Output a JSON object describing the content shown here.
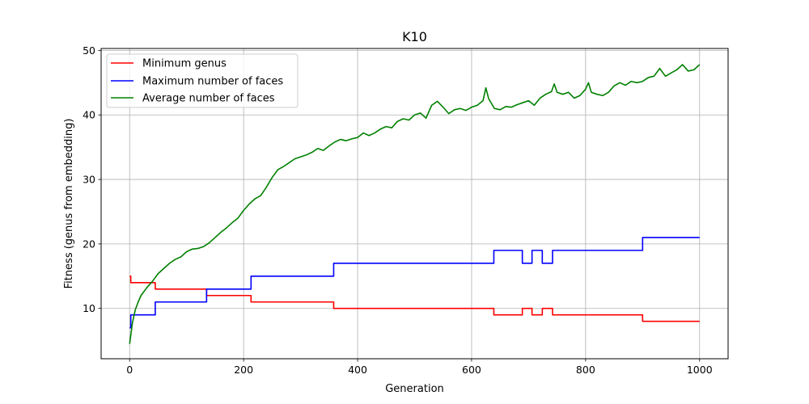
{
  "chart_data": {
    "type": "line",
    "title": "K10",
    "xlabel": "Generation",
    "ylabel": "Fitness (genus from embedding)",
    "xlim": [
      -50,
      1050
    ],
    "ylim": [
      2.2,
      50.3
    ],
    "xticks": [
      0,
      200,
      400,
      600,
      800,
      1000
    ],
    "yticks": [
      10,
      20,
      30,
      40,
      50
    ],
    "grid": true,
    "legend_position": "top-left",
    "series": [
      {
        "name": "Minimum genus",
        "color": "#ff0000",
        "step": true,
        "points": [
          [
            0,
            15
          ],
          [
            2,
            14
          ],
          [
            45,
            13
          ],
          [
            135,
            12
          ],
          [
            213,
            11
          ],
          [
            358,
            10
          ],
          [
            639,
            9
          ],
          [
            689,
            10
          ],
          [
            706,
            9
          ],
          [
            724,
            10
          ],
          [
            742,
            9
          ],
          [
            900,
            8
          ],
          [
            1000,
            8
          ]
        ]
      },
      {
        "name": "Maximum number of faces",
        "color": "#0000ff",
        "step": true,
        "points": [
          [
            0,
            7
          ],
          [
            2,
            9
          ],
          [
            45,
            11
          ],
          [
            135,
            13
          ],
          [
            213,
            15
          ],
          [
            358,
            17
          ],
          [
            639,
            19
          ],
          [
            689,
            17
          ],
          [
            706,
            19
          ],
          [
            724,
            17
          ],
          [
            742,
            19
          ],
          [
            900,
            21
          ],
          [
            1000,
            21
          ]
        ]
      },
      {
        "name": "Average number of faces",
        "color": "#008000",
        "step": false,
        "points": [
          [
            0,
            4.5
          ],
          [
            5,
            7.8
          ],
          [
            10,
            9.8
          ],
          [
            15,
            11
          ],
          [
            20,
            12
          ],
          [
            30,
            13.2
          ],
          [
            40,
            14.2
          ],
          [
            50,
            15.4
          ],
          [
            60,
            16.2
          ],
          [
            70,
            17
          ],
          [
            80,
            17.6
          ],
          [
            90,
            18
          ],
          [
            100,
            18.8
          ],
          [
            110,
            19.2
          ],
          [
            120,
            19.3
          ],
          [
            130,
            19.6
          ],
          [
            140,
            20.2
          ],
          [
            150,
            21
          ],
          [
            160,
            21.8
          ],
          [
            170,
            22.5
          ],
          [
            180,
            23.3
          ],
          [
            190,
            24
          ],
          [
            200,
            25.2
          ],
          [
            210,
            26.2
          ],
          [
            220,
            27
          ],
          [
            230,
            27.5
          ],
          [
            240,
            28.8
          ],
          [
            250,
            30.3
          ],
          [
            260,
            31.5
          ],
          [
            270,
            32
          ],
          [
            280,
            32.6
          ],
          [
            290,
            33.2
          ],
          [
            300,
            33.5
          ],
          [
            310,
            33.8
          ],
          [
            320,
            34.2
          ],
          [
            330,
            34.8
          ],
          [
            340,
            34.5
          ],
          [
            350,
            35.2
          ],
          [
            360,
            35.8
          ],
          [
            370,
            36.2
          ],
          [
            380,
            36
          ],
          [
            390,
            36.3
          ],
          [
            400,
            36.5
          ],
          [
            410,
            37.2
          ],
          [
            420,
            36.8
          ],
          [
            430,
            37.2
          ],
          [
            440,
            37.8
          ],
          [
            450,
            38.2
          ],
          [
            460,
            38
          ],
          [
            470,
            39
          ],
          [
            480,
            39.4
          ],
          [
            490,
            39.2
          ],
          [
            500,
            40
          ],
          [
            510,
            40.3
          ],
          [
            520,
            39.5
          ],
          [
            530,
            41.5
          ],
          [
            540,
            42.1
          ],
          [
            550,
            41.2
          ],
          [
            560,
            40.2
          ],
          [
            570,
            40.8
          ],
          [
            580,
            41
          ],
          [
            590,
            40.7
          ],
          [
            600,
            41.2
          ],
          [
            610,
            41.5
          ],
          [
            620,
            42.2
          ],
          [
            625,
            44.2
          ],
          [
            630,
            42.5
          ],
          [
            640,
            41
          ],
          [
            650,
            40.8
          ],
          [
            660,
            41.3
          ],
          [
            670,
            41.2
          ],
          [
            680,
            41.6
          ],
          [
            690,
            41.9
          ],
          [
            700,
            42.2
          ],
          [
            710,
            41.5
          ],
          [
            720,
            42.6
          ],
          [
            730,
            43.2
          ],
          [
            740,
            43.6
          ],
          [
            745,
            44.8
          ],
          [
            750,
            43.5
          ],
          [
            760,
            43.2
          ],
          [
            770,
            43.5
          ],
          [
            780,
            42.6
          ],
          [
            790,
            43
          ],
          [
            800,
            44
          ],
          [
            805,
            45
          ],
          [
            810,
            43.5
          ],
          [
            820,
            43.2
          ],
          [
            830,
            43
          ],
          [
            840,
            43.5
          ],
          [
            850,
            44.5
          ],
          [
            860,
            45
          ],
          [
            870,
            44.6
          ],
          [
            880,
            45.2
          ],
          [
            890,
            45
          ],
          [
            900,
            45.2
          ],
          [
            910,
            45.8
          ],
          [
            920,
            46
          ],
          [
            930,
            47.2
          ],
          [
            940,
            46
          ],
          [
            950,
            46.5
          ],
          [
            960,
            47
          ],
          [
            970,
            47.8
          ],
          [
            980,
            46.8
          ],
          [
            990,
            47
          ],
          [
            1000,
            47.8
          ]
        ]
      }
    ]
  }
}
